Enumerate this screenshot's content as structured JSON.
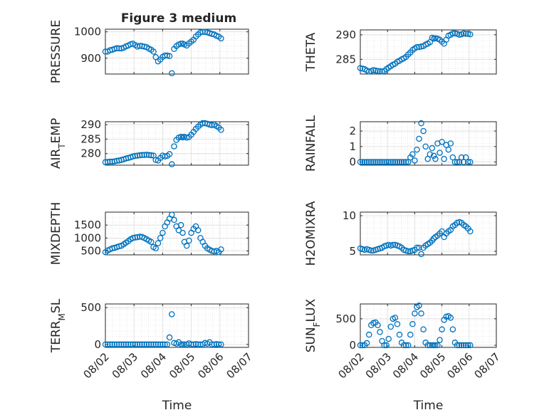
{
  "figure": {
    "title": "Figure 3 medium"
  },
  "chart_data": [
    {
      "type": "scatter",
      "ylabel": "PRESSURE",
      "yticks": [
        900,
        1000
      ],
      "ylim": [
        840,
        1010
      ],
      "xlim": [
        "08/02",
        "08/07"
      ],
      "xtick_labels": [],
      "series": [
        {
          "x": [
            0.0,
            0.08,
            0.16,
            0.24,
            0.32,
            0.4,
            0.48,
            0.56,
            0.64,
            0.72,
            0.8,
            0.88,
            0.96,
            1.04,
            1.12,
            1.2,
            1.28,
            1.36,
            1.44,
            1.52,
            1.6,
            1.68,
            1.76,
            1.84,
            1.92,
            2.0,
            2.08,
            2.16,
            2.24,
            2.32,
            2.4,
            2.48,
            2.56,
            2.64,
            2.7,
            2.76,
            2.84,
            2.92,
            3.0,
            3.08,
            3.16,
            3.24,
            3.32,
            3.4,
            3.48,
            3.56,
            3.64,
            3.72,
            3.8,
            3.88,
            3.96,
            4.04
          ],
          "y": [
            925,
            925,
            930,
            932,
            935,
            938,
            937,
            937,
            940,
            945,
            948,
            953,
            955,
            950,
            944,
            947,
            946,
            944,
            942,
            936,
            932,
            925,
            904,
            888,
            895,
            905,
            910,
            910,
            908,
            843,
            935,
            946,
            952,
            955,
            955,
            952,
            948,
            956,
            963,
            970,
            982,
            990,
            998,
            1000,
            1000,
            998,
            995,
            992,
            990,
            985,
            982,
            975
          ]
        }
      ]
    },
    {
      "type": "scatter",
      "ylabel": "THETA",
      "yticks": [
        285,
        290
      ],
      "ylim": [
        282,
        291
      ],
      "xlim": [
        "08/02",
        "08/07"
      ],
      "xtick_labels": [],
      "series": [
        {
          "x": [
            0.0,
            0.08,
            0.16,
            0.24,
            0.32,
            0.4,
            0.48,
            0.56,
            0.64,
            0.72,
            0.8,
            0.88,
            0.96,
            1.04,
            1.12,
            1.2,
            1.28,
            1.36,
            1.44,
            1.52,
            1.6,
            1.68,
            1.76,
            1.84,
            1.92,
            2.0,
            2.08,
            2.16,
            2.24,
            2.32,
            2.4,
            2.48,
            2.56,
            2.64,
            2.7,
            2.76,
            2.84,
            2.92,
            3.0,
            3.08,
            3.16,
            3.24,
            3.32,
            3.4,
            3.48,
            3.56,
            3.64,
            3.72,
            3.8,
            3.88,
            3.96,
            4.04
          ],
          "y": [
            283.2,
            283.1,
            283.0,
            282.7,
            282.5,
            282.6,
            282.8,
            282.7,
            282.6,
            282.6,
            282.5,
            282.6,
            283.0,
            283.3,
            283.6,
            283.9,
            284.1,
            284.5,
            284.7,
            285.0,
            285.2,
            285.5,
            286.0,
            286.4,
            286.9,
            287.2,
            287.5,
            287.5,
            287.6,
            287.7,
            288.0,
            288.2,
            288.5,
            289.4,
            289.2,
            289.3,
            289.2,
            289.0,
            288.6,
            288.2,
            289.0,
            289.8,
            290.0,
            290.3,
            290.3,
            290.2,
            290.0,
            290.1,
            290.3,
            290.2,
            290.2,
            290.1
          ]
        }
      ]
    },
    {
      "type": "scatter",
      "ylabel": "AIR_TEMP",
      "yticks": [
        280,
        285,
        290
      ],
      "ylim": [
        276,
        291
      ],
      "xlim": [
        "08/02",
        "08/07"
      ],
      "xtick_labels": [],
      "series": [
        {
          "x": [
            0.0,
            0.08,
            0.16,
            0.24,
            0.32,
            0.4,
            0.48,
            0.56,
            0.64,
            0.72,
            0.8,
            0.88,
            0.96,
            1.04,
            1.12,
            1.2,
            1.28,
            1.36,
            1.44,
            1.52,
            1.6,
            1.68,
            1.76,
            1.84,
            1.92,
            2.0,
            2.08,
            2.16,
            2.24,
            2.32,
            2.4,
            2.48,
            2.56,
            2.64,
            2.7,
            2.76,
            2.84,
            2.92,
            3.0,
            3.08,
            3.16,
            3.24,
            3.32,
            3.4,
            3.48,
            3.56,
            3.64,
            3.72,
            3.8,
            3.88,
            3.96,
            4.04
          ],
          "y": [
            277.0,
            277.1,
            277.2,
            277.2,
            277.3,
            277.5,
            277.6,
            277.8,
            278.0,
            278.3,
            278.5,
            278.7,
            279.0,
            279.2,
            279.3,
            279.4,
            279.5,
            279.5,
            279.6,
            279.5,
            279.4,
            279.3,
            277.8,
            277.6,
            278.5,
            279.3,
            279.0,
            279.2,
            279.8,
            276.3,
            282.5,
            284.7,
            285.5,
            285.8,
            285.6,
            285.8,
            285.5,
            285.7,
            286.5,
            287.5,
            288.5,
            289.3,
            290.0,
            290.5,
            290.5,
            290.3,
            290.0,
            289.8,
            290.0,
            289.5,
            289.0,
            288.2
          ]
        }
      ]
    },
    {
      "type": "scatter",
      "ylabel": "RAINFALL",
      "yticks": [
        0,
        1,
        2
      ],
      "ylim": [
        -0.2,
        2.6
      ],
      "xlim": [
        "08/02",
        "08/07"
      ],
      "xtick_labels": [],
      "series": [
        {
          "x": [
            0.0,
            0.08,
            0.16,
            0.24,
            0.32,
            0.4,
            0.48,
            0.56,
            0.64,
            0.72,
            0.8,
            0.88,
            0.96,
            1.04,
            1.12,
            1.2,
            1.28,
            1.36,
            1.44,
            1.52,
            1.6,
            1.68,
            1.76,
            1.84,
            1.92,
            2.0,
            2.08,
            2.16,
            2.24,
            2.32,
            2.4,
            2.48,
            2.56,
            2.64,
            2.7,
            2.76,
            2.84,
            2.92,
            3.0,
            3.08,
            3.16,
            3.24,
            3.32,
            3.4,
            3.48,
            3.56,
            3.64,
            3.72,
            3.8,
            3.88,
            3.96,
            4.04
          ],
          "y": [
            0,
            0,
            0,
            0,
            0,
            0,
            0,
            0,
            0,
            0,
            0,
            0,
            0,
            0,
            0,
            0,
            0,
            0,
            0,
            0,
            0,
            0,
            0,
            0.3,
            0.5,
            0.1,
            0.8,
            1.5,
            2.5,
            2.0,
            1.0,
            0.2,
            0.5,
            0.9,
            0.4,
            0.2,
            1.2,
            0.6,
            1.3,
            0.2,
            1.1,
            0.8,
            1.2,
            0.3,
            0,
            0,
            0,
            0.3,
            0,
            0.3,
            0,
            0
          ]
        }
      ]
    },
    {
      "type": "scatter",
      "ylabel": "MIXDEPTH",
      "yticks": [
        500,
        1000,
        1500
      ],
      "ylim": [
        350,
        2000
      ],
      "xlim": [
        "08/02",
        "08/07"
      ],
      "xtick_labels": [],
      "series": [
        {
          "x": [
            0.0,
            0.08,
            0.16,
            0.24,
            0.32,
            0.4,
            0.48,
            0.56,
            0.64,
            0.72,
            0.8,
            0.88,
            0.96,
            1.04,
            1.12,
            1.2,
            1.28,
            1.36,
            1.44,
            1.52,
            1.6,
            1.68,
            1.76,
            1.84,
            1.92,
            2.0,
            2.08,
            2.16,
            2.24,
            2.32,
            2.4,
            2.48,
            2.56,
            2.64,
            2.7,
            2.76,
            2.84,
            2.92,
            3.0,
            3.08,
            3.16,
            3.24,
            3.32,
            3.4,
            3.48,
            3.56,
            3.64,
            3.72,
            3.8,
            3.88,
            3.96,
            4.04
          ],
          "y": [
            450,
            520,
            560,
            600,
            620,
            650,
            680,
            700,
            760,
            820,
            880,
            950,
            1000,
            1020,
            1030,
            1050,
            1040,
            1000,
            950,
            900,
            850,
            650,
            600,
            800,
            1000,
            1200,
            1450,
            1600,
            1750,
            1900,
            1700,
            1450,
            1300,
            1500,
            1200,
            850,
            700,
            900,
            1200,
            1350,
            1450,
            1300,
            1000,
            850,
            700,
            600,
            550,
            500,
            480,
            500,
            450,
            560
          ]
        }
      ]
    },
    {
      "type": "scatter",
      "ylabel": "H2OMIXRA",
      "yticks": [
        5,
        10
      ],
      "ylim": [
        4.5,
        10.5
      ],
      "xlim": [
        "08/02",
        "08/07"
      ],
      "xtick_labels": [],
      "series": [
        {
          "x": [
            0.0,
            0.08,
            0.16,
            0.24,
            0.32,
            0.4,
            0.48,
            0.56,
            0.64,
            0.72,
            0.8,
            0.88,
            0.96,
            1.04,
            1.12,
            1.2,
            1.28,
            1.36,
            1.44,
            1.52,
            1.6,
            1.68,
            1.76,
            1.84,
            1.92,
            2.0,
            2.08,
            2.16,
            2.24,
            2.32,
            2.4,
            2.48,
            2.56,
            2.64,
            2.7,
            2.76,
            2.84,
            2.92,
            3.0,
            3.08,
            3.16,
            3.24,
            3.32,
            3.4,
            3.48,
            3.56,
            3.64,
            3.72,
            3.8,
            3.88,
            3.96,
            4.04
          ],
          "y": [
            5.4,
            5.3,
            5.2,
            5.3,
            5.2,
            5.1,
            5.1,
            5.2,
            5.3,
            5.4,
            5.5,
            5.7,
            5.8,
            5.9,
            5.8,
            5.9,
            5.9,
            5.8,
            5.7,
            5.5,
            5.2,
            5.1,
            5.0,
            5.0,
            5.1,
            5.2,
            5.5,
            5.5,
            4.6,
            5.5,
            5.8,
            6.0,
            6.2,
            6.5,
            6.8,
            7.0,
            7.2,
            7.5,
            7.8,
            7.0,
            7.5,
            7.8,
            8.0,
            8.5,
            8.7,
            9.0,
            9.1,
            9.0,
            8.7,
            8.5,
            8.2,
            7.8
          ]
        }
      ]
    },
    {
      "type": "scatter",
      "ylabel": "TERR_MSL",
      "yticks": [
        0,
        500
      ],
      "ylim": [
        -40,
        550
      ],
      "xlim": [
        "08/02",
        "08/07"
      ],
      "xtick_labels": [
        "08/02",
        "08/03",
        "08/04",
        "08/05",
        "08/06",
        "08/07"
      ],
      "xlabel": "Time",
      "series": [
        {
          "x": [
            0.0,
            0.08,
            0.16,
            0.24,
            0.32,
            0.4,
            0.48,
            0.56,
            0.64,
            0.72,
            0.8,
            0.88,
            0.96,
            1.04,
            1.12,
            1.2,
            1.28,
            1.36,
            1.44,
            1.52,
            1.6,
            1.68,
            1.76,
            1.84,
            1.92,
            2.0,
            2.08,
            2.16,
            2.24,
            2.32,
            2.4,
            2.48,
            2.56,
            2.64,
            2.7,
            2.76,
            2.84,
            2.92,
            3.0,
            3.08,
            3.16,
            3.24,
            3.32,
            3.4,
            3.48,
            3.56,
            3.64,
            3.72,
            3.8,
            3.88,
            3.96,
            4.04
          ],
          "y": [
            0,
            0,
            0,
            0,
            0,
            0,
            0,
            0,
            0,
            0,
            0,
            0,
            0,
            0,
            0,
            0,
            0,
            0,
            0,
            0,
            0,
            0,
            0,
            0,
            0,
            0,
            0,
            0,
            95,
            410,
            20,
            10,
            30,
            0,
            0,
            0,
            0,
            15,
            0,
            0,
            5,
            0,
            0,
            0,
            20,
            10,
            30,
            0,
            0,
            5,
            0,
            0
          ]
        }
      ]
    },
    {
      "type": "scatter",
      "ylabel": "SUN_FLUX",
      "yticks": [
        0,
        500
      ],
      "ylim": [
        -40,
        780
      ],
      "xlim": [
        "08/02",
        "08/07"
      ],
      "xtick_labels": [
        "08/02",
        "08/03",
        "08/04",
        "08/05",
        "08/06",
        "08/07"
      ],
      "xlabel": "Time",
      "series": [
        {
          "x": [
            0.0,
            0.08,
            0.16,
            0.24,
            0.32,
            0.4,
            0.48,
            0.56,
            0.64,
            0.72,
            0.8,
            0.88,
            0.96,
            1.04,
            1.12,
            1.2,
            1.28,
            1.36,
            1.44,
            1.52,
            1.6,
            1.68,
            1.76,
            1.84,
            1.92,
            2.0,
            2.08,
            2.16,
            2.24,
            2.32,
            2.4,
            2.48,
            2.56,
            2.64,
            2.7,
            2.76,
            2.84,
            2.92,
            3.0,
            3.08,
            3.16,
            3.24,
            3.32,
            3.4,
            3.48,
            3.56,
            3.64,
            3.72,
            3.8,
            3.88,
            3.96,
            4.04
          ],
          "y": [
            0,
            0,
            0,
            40,
            200,
            380,
            420,
            430,
            380,
            250,
            80,
            0,
            0,
            120,
            350,
            500,
            520,
            400,
            200,
            50,
            0,
            0,
            0,
            200,
            400,
            600,
            720,
            750,
            600,
            300,
            50,
            0,
            0,
            0,
            0,
            0,
            0,
            100,
            300,
            480,
            540,
            550,
            520,
            300,
            50,
            0,
            0,
            0,
            0,
            0,
            0,
            0
          ]
        }
      ]
    }
  ]
}
